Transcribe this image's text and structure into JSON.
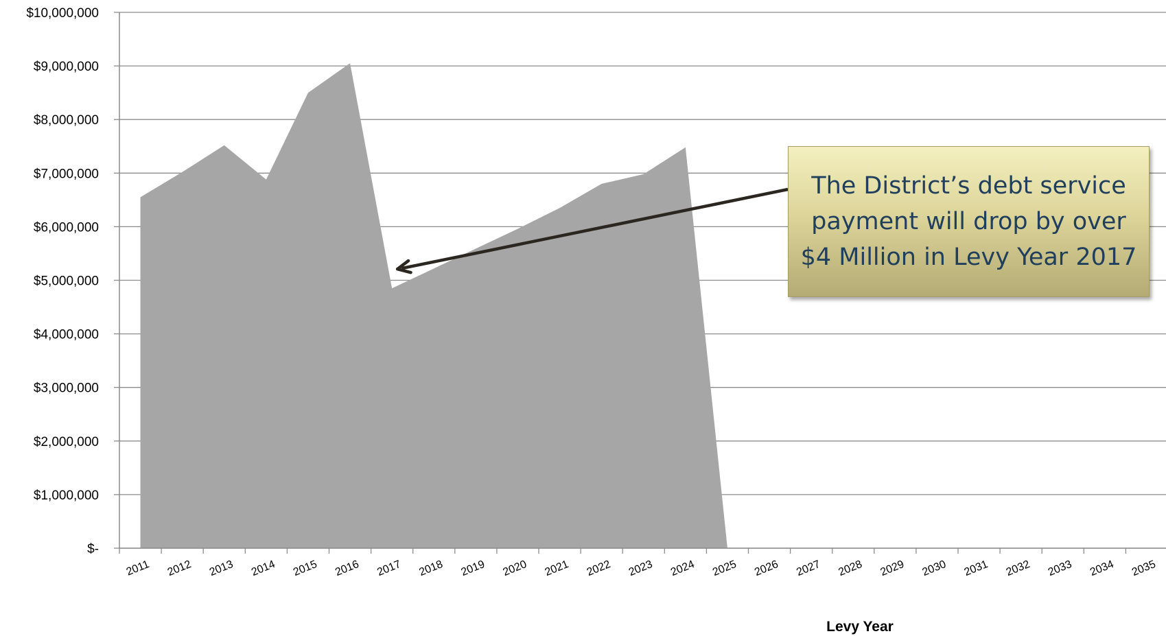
{
  "chart_data": {
    "type": "area",
    "xlabel": "Levy Year",
    "ylabel": "",
    "x": [
      "2011",
      "2012",
      "2013",
      "2014",
      "2015",
      "2016",
      "2017",
      "2018",
      "2019",
      "2020",
      "2021",
      "2022",
      "2023",
      "2024",
      "2025",
      "2026",
      "2027",
      "2028",
      "2029",
      "2030",
      "2031",
      "2032",
      "2033",
      "2034",
      "2035"
    ],
    "values": [
      6550000,
      7020000,
      7520000,
      6880000,
      8500000,
      9050000,
      4850000,
      5220000,
      5590000,
      5960000,
      6350000,
      6800000,
      6980000,
      7480000,
      0,
      null,
      null,
      null,
      null,
      null,
      null,
      null,
      null,
      null,
      null
    ],
    "ylim": [
      0,
      10000000
    ],
    "y_ticks": [
      "$-",
      "$1,000,000",
      "$2,000,000",
      "$3,000,000",
      "$4,000,000",
      "$5,000,000",
      "$6,000,000",
      "$7,000,000",
      "$8,000,000",
      "$9,000,000",
      "$10,000,000"
    ],
    "grid": true,
    "area_color": "#a6a6a6",
    "annotation": {
      "text": "The District’s debt service payment will drop by over $4 Million in Levy Year 2017",
      "points_to": "2017",
      "box_color": "#ddd59a",
      "text_color": "#1f3f5c"
    }
  }
}
